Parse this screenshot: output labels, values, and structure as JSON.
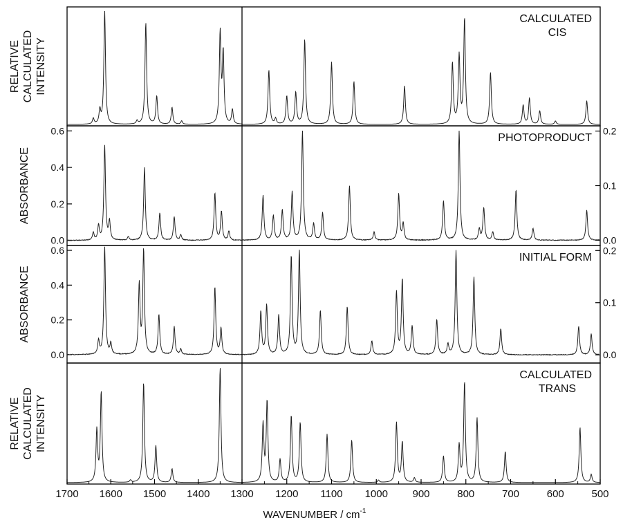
{
  "chart_data": {
    "type": "line",
    "xlabel": "WAVENUMBER / cm",
    "xlabel_sup": "-1",
    "x_axis": {
      "reversed": true,
      "segments": [
        {
          "range": [
            1700,
            1300
          ],
          "ticks": [
            1700,
            1600,
            1500,
            1400,
            1300
          ],
          "tick_labels": [
            "1700",
            "1600",
            "1500",
            "1400",
            "1300"
          ]
        },
        {
          "range": [
            1300,
            500
          ],
          "ticks": [
            1200,
            1100,
            1000,
            900,
            800,
            700,
            600,
            500
          ],
          "tick_labels": [
            "1200",
            "1100",
            "1000",
            "900",
            "800",
            "700",
            "600",
            "500"
          ]
        }
      ]
    },
    "grid": false,
    "panels": [
      {
        "name": "CALCULATED CIS",
        "label_lines": [
          "CALCULATED",
          "CIS"
        ],
        "ylabel_lines": [
          "RELATIVE",
          "CALCULATED",
          "INTENSITY"
        ],
        "left_ticks": [],
        "right_ticks": [],
        "left_range": [
          0,
          1
        ],
        "right_range": [
          0,
          1
        ],
        "peaks_left": [
          [
            1640,
            0.05
          ],
          [
            1625,
            0.12
          ],
          [
            1614,
            1.0
          ],
          [
            1540,
            0.03
          ],
          [
            1520,
            0.9
          ],
          [
            1495,
            0.25
          ],
          [
            1460,
            0.15
          ],
          [
            1438,
            0.03
          ],
          [
            1350,
            0.8
          ],
          [
            1343,
            0.62
          ],
          [
            1322,
            0.13
          ]
        ],
        "peaks_right": [
          [
            1240,
            0.48
          ],
          [
            1225,
            0.05
          ],
          [
            1200,
            0.25
          ],
          [
            1180,
            0.28
          ],
          [
            1160,
            0.75
          ],
          [
            1100,
            0.55
          ],
          [
            1050,
            0.38
          ],
          [
            937,
            0.34
          ],
          [
            830,
            0.54
          ],
          [
            815,
            0.6
          ],
          [
            803,
            0.93
          ],
          [
            745,
            0.46
          ],
          [
            672,
            0.17
          ],
          [
            658,
            0.23
          ],
          [
            635,
            0.12
          ],
          [
            600,
            0.03
          ],
          [
            530,
            0.21
          ]
        ]
      },
      {
        "name": "PHOTOPRODUCT",
        "label_lines": [
          "PHOTOPRODUCT"
        ],
        "ylabel_lines": [
          "ABSORBANCE"
        ],
        "left_ticks": [
          0.0,
          0.2,
          0.4,
          0.6
        ],
        "left_tick_labels": [
          "0.0",
          "0.2",
          "0.4",
          "0.6"
        ],
        "right_ticks": [
          0.0,
          0.1,
          0.2
        ],
        "right_tick_labels": [
          "0.0",
          "0.1",
          "0.2"
        ],
        "left_range": [
          -0.02,
          0.62
        ],
        "right_range": [
          -0.007,
          0.207
        ],
        "peaks_left": [
          [
            1640,
            0.04
          ],
          [
            1628,
            0.08
          ],
          [
            1614,
            0.52
          ],
          [
            1603,
            0.1
          ],
          [
            1560,
            0.02
          ],
          [
            1523,
            0.4
          ],
          [
            1488,
            0.15
          ],
          [
            1455,
            0.13
          ],
          [
            1440,
            0.03
          ],
          [
            1362,
            0.26
          ],
          [
            1347,
            0.16
          ],
          [
            1330,
            0.05
          ]
        ],
        "peaks_right": [
          [
            1253,
            0.082
          ],
          [
            1230,
            0.045
          ],
          [
            1210,
            0.055
          ],
          [
            1188,
            0.088
          ],
          [
            1165,
            0.2
          ],
          [
            1140,
            0.03
          ],
          [
            1120,
            0.05
          ],
          [
            1060,
            0.1
          ],
          [
            1005,
            0.015
          ],
          [
            950,
            0.085
          ],
          [
            940,
            0.03
          ],
          [
            850,
            0.072
          ],
          [
            815,
            0.2
          ],
          [
            770,
            0.02
          ],
          [
            760,
            0.06
          ],
          [
            740,
            0.015
          ],
          [
            688,
            0.093
          ],
          [
            650,
            0.022
          ],
          [
            530,
            0.055
          ]
        ]
      },
      {
        "name": "INITIAL FORM",
        "label_lines": [
          "INITIAL  FORM"
        ],
        "ylabel_lines": [
          "ABSORBANCE"
        ],
        "left_ticks": [
          0.0,
          0.2,
          0.4,
          0.6
        ],
        "left_tick_labels": [
          "0.0",
          "0.2",
          "0.4",
          "0.6"
        ],
        "right_ticks": [
          0.0,
          0.1,
          0.2
        ],
        "right_tick_labels": [
          "0.0",
          "0.1",
          "0.2"
        ],
        "left_range": [
          -0.04,
          0.62
        ],
        "right_range": [
          -0.013,
          0.207
        ],
        "peaks_left": [
          [
            1628,
            0.08
          ],
          [
            1614,
            0.62
          ],
          [
            1600,
            0.06
          ],
          [
            1535,
            0.4
          ],
          [
            1525,
            0.6
          ],
          [
            1490,
            0.23
          ],
          [
            1455,
            0.16
          ],
          [
            1440,
            0.03
          ],
          [
            1362,
            0.39
          ],
          [
            1348,
            0.15
          ]
        ],
        "peaks_right": [
          [
            1258,
            0.083
          ],
          [
            1245,
            0.095
          ],
          [
            1218,
            0.075
          ],
          [
            1190,
            0.19
          ],
          [
            1172,
            0.2
          ],
          [
            1125,
            0.085
          ],
          [
            1065,
            0.093
          ],
          [
            1010,
            0.027
          ],
          [
            955,
            0.12
          ],
          [
            942,
            0.145
          ],
          [
            920,
            0.055
          ],
          [
            865,
            0.068
          ],
          [
            840,
            0.02
          ],
          [
            822,
            0.2
          ],
          [
            782,
            0.15
          ],
          [
            722,
            0.05
          ],
          [
            548,
            0.055
          ],
          [
            520,
            0.04
          ]
        ]
      },
      {
        "name": "CALCULATED TRANS",
        "label_lines": [
          "CALCULATED",
          "TRANS"
        ],
        "ylabel_lines": [
          "RELATIVE",
          "CALCULATED",
          "INTENSITY"
        ],
        "left_ticks": [],
        "right_ticks": [],
        "left_range": [
          0,
          1
        ],
        "right_range": [
          0,
          1
        ],
        "peaks_left": [
          [
            1632,
            0.45
          ],
          [
            1622,
            0.78
          ],
          [
            1555,
            0.02
          ],
          [
            1525,
            0.87
          ],
          [
            1497,
            0.32
          ],
          [
            1460,
            0.12
          ],
          [
            1350,
            1.0
          ]
        ],
        "peaks_right": [
          [
            1253,
            0.5
          ],
          [
            1244,
            0.7
          ],
          [
            1215,
            0.2
          ],
          [
            1190,
            0.58
          ],
          [
            1170,
            0.52
          ],
          [
            1110,
            0.42
          ],
          [
            1055,
            0.37
          ],
          [
            995,
            0.02
          ],
          [
            955,
            0.52
          ],
          [
            942,
            0.35
          ],
          [
            915,
            0.04
          ],
          [
            850,
            0.23
          ],
          [
            815,
            0.32
          ],
          [
            803,
            0.87
          ],
          [
            775,
            0.56
          ],
          [
            712,
            0.27
          ],
          [
            545,
            0.48
          ],
          [
            520,
            0.07
          ]
        ]
      }
    ]
  }
}
